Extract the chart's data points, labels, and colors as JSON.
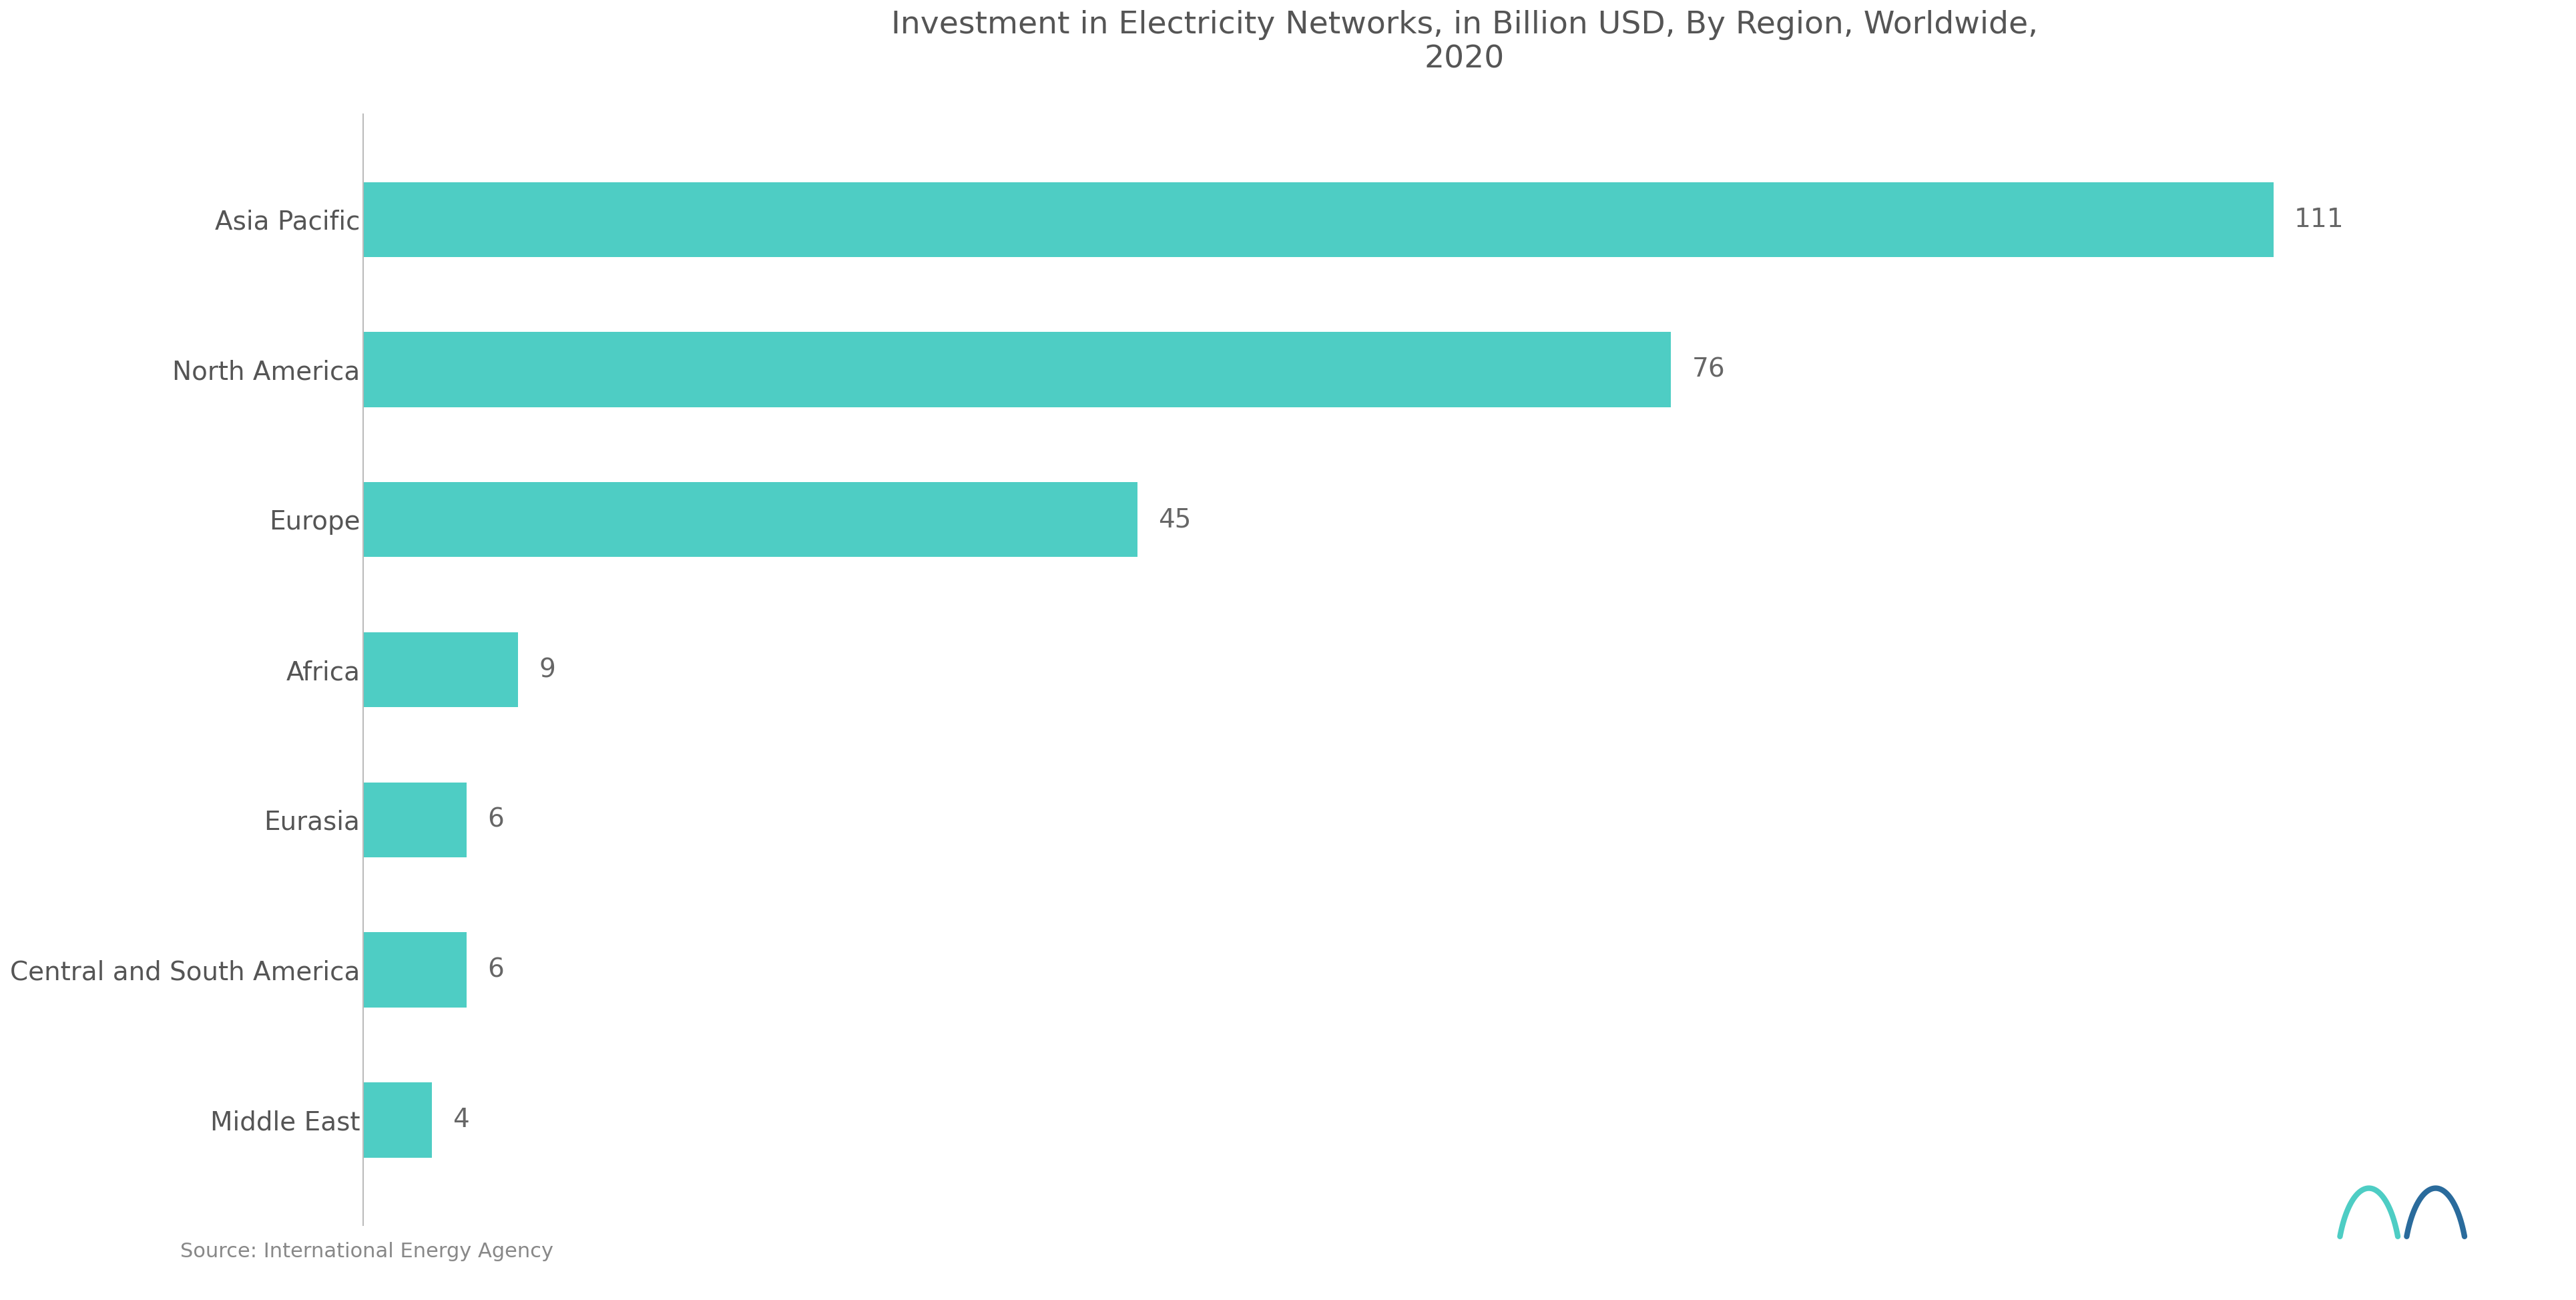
{
  "title": "Investment in Electricity Networks, in Billion USD, By Region, Worldwide,\n2020",
  "categories": [
    "Asia Pacific",
    "North America",
    "Europe",
    "Africa",
    "Eurasia",
    "Central and South America",
    "Middle East"
  ],
  "values": [
    111,
    76,
    45,
    9,
    6,
    6,
    4
  ],
  "bar_color": "#4ECDC4",
  "background_color": "#ffffff",
  "title_color": "#555555",
  "label_color": "#555555",
  "value_color": "#666666",
  "source_text": "Source: International Energy Agency",
  "title_fontsize": 34,
  "label_fontsize": 28,
  "value_fontsize": 28,
  "source_fontsize": 22,
  "logo_color1": "#4ECDC4",
  "logo_color2": "#2a6b9c"
}
